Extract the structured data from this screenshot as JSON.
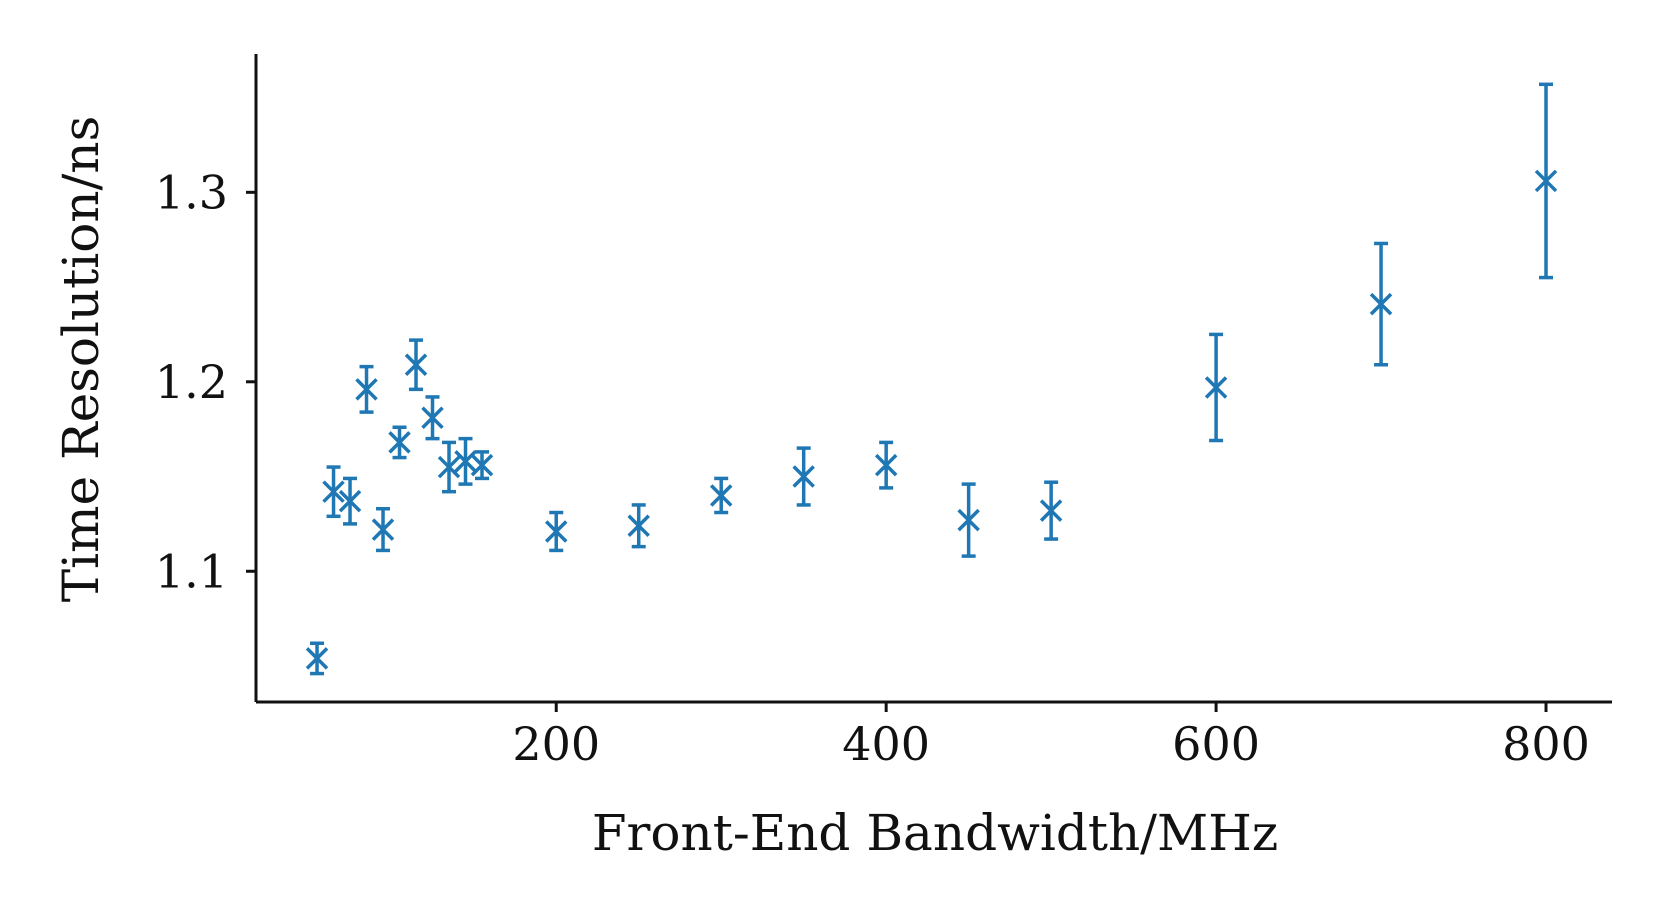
{
  "chart_data": {
    "type": "scatter",
    "title": "",
    "xlabel": "Front-End Bandwidth/MHz",
    "ylabel": "Time Resolution/ns",
    "xlim": [
      18,
      840
    ],
    "ylim": [
      1.031,
      1.373
    ],
    "xticks": [
      200,
      400,
      600,
      800
    ],
    "xtick_labels": [
      "200",
      "400",
      "600",
      "800"
    ],
    "yticks": [
      1.1,
      1.2,
      1.3
    ],
    "ytick_labels": [
      "1.1",
      "1.2",
      "1.3"
    ],
    "grid": false,
    "marker": "x",
    "color": "#1f77b4",
    "series": [
      {
        "points": [
          {
            "x": 55,
            "y": 1.054,
            "err": 0.008
          },
          {
            "x": 65,
            "y": 1.142,
            "err": 0.013
          },
          {
            "x": 75,
            "y": 1.137,
            "err": 0.012
          },
          {
            "x": 85,
            "y": 1.196,
            "err": 0.012
          },
          {
            "x": 95,
            "y": 1.122,
            "err": 0.011
          },
          {
            "x": 105,
            "y": 1.168,
            "err": 0.008
          },
          {
            "x": 115,
            "y": 1.209,
            "err": 0.013
          },
          {
            "x": 125,
            "y": 1.181,
            "err": 0.011
          },
          {
            "x": 135,
            "y": 1.155,
            "err": 0.013
          },
          {
            "x": 145,
            "y": 1.158,
            "err": 0.012
          },
          {
            "x": 155,
            "y": 1.156,
            "err": 0.007
          },
          {
            "x": 200,
            "y": 1.121,
            "err": 0.01
          },
          {
            "x": 250,
            "y": 1.124,
            "err": 0.011
          },
          {
            "x": 300,
            "y": 1.14,
            "err": 0.009
          },
          {
            "x": 350,
            "y": 1.15,
            "err": 0.015
          },
          {
            "x": 400,
            "y": 1.156,
            "err": 0.012
          },
          {
            "x": 450,
            "y": 1.127,
            "err": 0.019
          },
          {
            "x": 500,
            "y": 1.132,
            "err": 0.015
          },
          {
            "x": 600,
            "y": 1.197,
            "err": 0.028
          },
          {
            "x": 700,
            "y": 1.241,
            "err": 0.032
          },
          {
            "x": 800,
            "y": 1.306,
            "err": 0.051
          }
        ]
      }
    ]
  }
}
